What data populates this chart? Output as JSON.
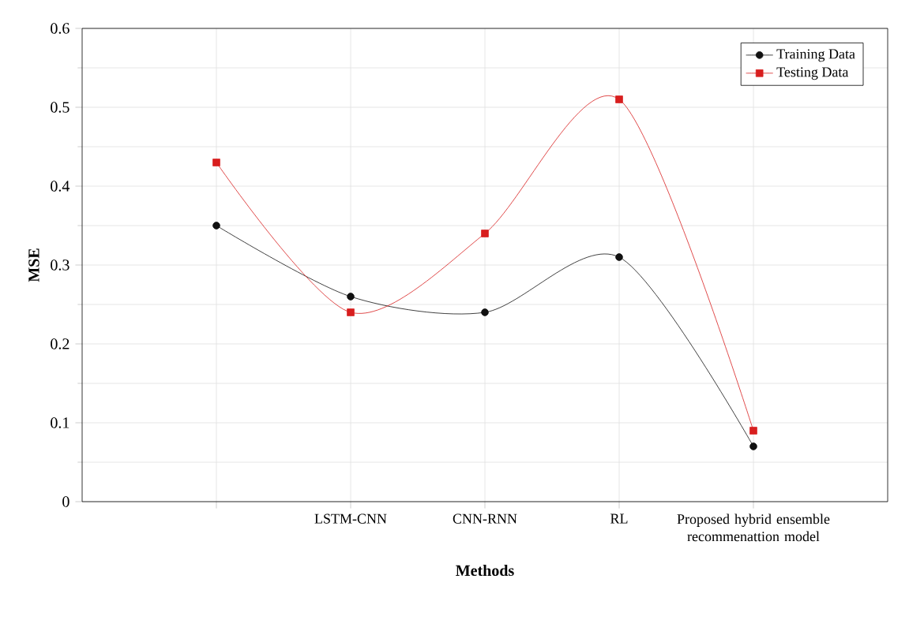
{
  "chart_data": {
    "type": "line",
    "xlabel": "Methods",
    "ylabel": "MSE",
    "categories": [
      null,
      "LSTM-CNN",
      "CNN-RNN",
      "RL",
      "Proposed hybrid ensemble recommenattion model"
    ],
    "series": [
      {
        "name": "Training Data",
        "color": "#111111",
        "marker": "circle",
        "values": [
          0.35,
          0.26,
          0.24,
          0.31,
          0.07
        ]
      },
      {
        "name": "Testing Data",
        "color": "#d81e1e",
        "marker": "square",
        "values": [
          0.43,
          0.24,
          0.34,
          0.51,
          0.09
        ]
      }
    ],
    "ylim": [
      0,
      0.6
    ],
    "yticks": [
      0,
      0.1,
      0.2,
      0.3,
      0.4,
      0.5,
      0.6
    ],
    "grid": true,
    "legend": "top right"
  }
}
